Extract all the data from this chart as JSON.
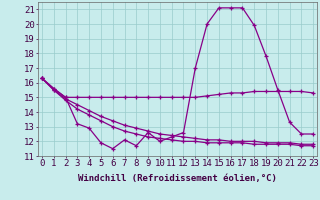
{
  "xlabel": "Windchill (Refroidissement éolien,°C)",
  "x": [
    0,
    1,
    2,
    3,
    4,
    5,
    6,
    7,
    8,
    9,
    10,
    11,
    12,
    13,
    14,
    15,
    16,
    17,
    18,
    19,
    20,
    21,
    22,
    23
  ],
  "line1": [
    16.3,
    15.6,
    15.0,
    15.0,
    15.0,
    15.0,
    15.0,
    15.0,
    15.0,
    15.0,
    15.0,
    15.0,
    15.0,
    15.0,
    15.1,
    15.2,
    15.3,
    15.3,
    15.4,
    15.4,
    15.4,
    15.4,
    15.4,
    15.3
  ],
  "line2": [
    16.3,
    15.6,
    15.0,
    13.2,
    12.9,
    11.9,
    11.5,
    12.1,
    11.7,
    12.6,
    12.0,
    12.3,
    12.6,
    17.0,
    20.0,
    21.1,
    21.1,
    21.1,
    19.9,
    17.8,
    15.5,
    13.3,
    12.5,
    12.5
  ],
  "line3": [
    16.3,
    15.5,
    14.8,
    14.2,
    13.8,
    13.4,
    13.0,
    12.7,
    12.5,
    12.3,
    12.2,
    12.1,
    12.0,
    12.0,
    11.9,
    11.9,
    11.9,
    11.9,
    11.8,
    11.8,
    11.8,
    11.8,
    11.7,
    11.7
  ],
  "line4": [
    16.3,
    15.5,
    14.9,
    14.5,
    14.1,
    13.7,
    13.4,
    13.1,
    12.9,
    12.7,
    12.5,
    12.4,
    12.3,
    12.2,
    12.1,
    12.1,
    12.0,
    12.0,
    12.0,
    11.9,
    11.9,
    11.9,
    11.8,
    11.8
  ],
  "line_color": "#880088",
  "bg_color": "#c8ecec",
  "grid_color": "#99cccc",
  "ylim": [
    11,
    21.5
  ],
  "yticks": [
    11,
    12,
    13,
    14,
    15,
    16,
    17,
    18,
    19,
    20,
    21
  ],
  "xticks": [
    0,
    1,
    2,
    3,
    4,
    5,
    6,
    7,
    8,
    9,
    10,
    11,
    12,
    13,
    14,
    15,
    16,
    17,
    18,
    19,
    20,
    21,
    22,
    23
  ],
  "xlabel_fontsize": 6.5,
  "tick_fontsize": 6.5
}
